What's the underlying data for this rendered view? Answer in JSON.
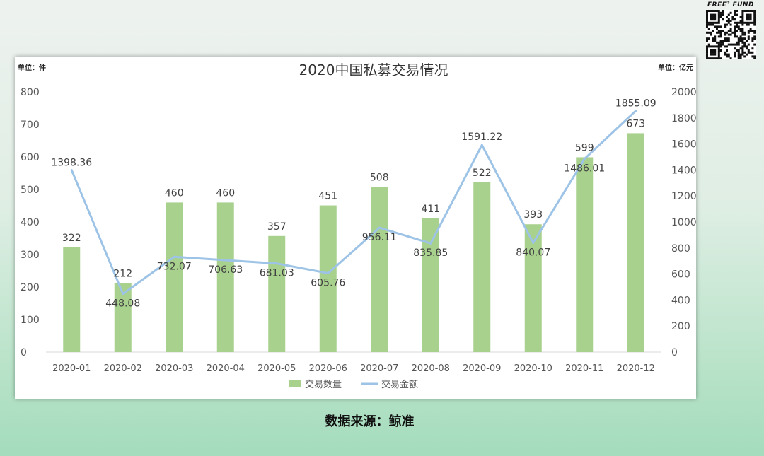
{
  "brand": {
    "name": "FREE³ FUND"
  },
  "chart_data": {
    "type": "bar+line",
    "title": "2020中国私募交易情况",
    "left_unit": "单位：件",
    "right_unit": "单位：亿元",
    "categories": [
      "2020-01",
      "2020-02",
      "2020-03",
      "2020-04",
      "2020-05",
      "2020-06",
      "2020-07",
      "2020-08",
      "2020-09",
      "2020-10",
      "2020-11",
      "2020-12"
    ],
    "series": [
      {
        "name": "交易数量",
        "type": "bar",
        "axis": "left",
        "color": "#a9d18e",
        "values": [
          322,
          212,
          460,
          460,
          357,
          451,
          508,
          411,
          522,
          393,
          599,
          673
        ]
      },
      {
        "name": "交易金额",
        "type": "line",
        "axis": "right",
        "color": "#9dc3e6",
        "values": [
          1398.36,
          448.08,
          732.07,
          706.63,
          681.03,
          605.76,
          956.11,
          835.85,
          1591.22,
          840.07,
          1486.01,
          1855.09
        ]
      }
    ],
    "ylim_left": [
      0,
      800
    ],
    "yticks_left": [
      0,
      100,
      200,
      300,
      400,
      500,
      600,
      700,
      800
    ],
    "ylim_right": [
      0,
      2000
    ],
    "yticks_right": [
      0,
      200,
      400,
      600,
      800,
      1000,
      1200,
      1400,
      1600,
      1800,
      2000
    ],
    "legend_position": "bottom"
  },
  "source": "数据来源：鲸准"
}
